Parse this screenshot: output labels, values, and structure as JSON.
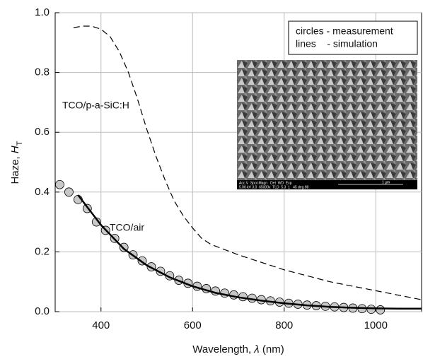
{
  "chart_data": {
    "type": "scatter-line",
    "x_label": {
      "text": "Wavelength, ",
      "var": "λ",
      "unit": " (nm)"
    },
    "y_label": {
      "text": "Haze, ",
      "var": "H",
      "sub": "T"
    },
    "xlim": [
      300,
      1100
    ],
    "xticks": [
      400,
      600,
      800,
      1000
    ],
    "ylim": [
      0,
      1
    ],
    "yticks": [
      {
        "value": 0,
        "label": "0.0"
      },
      {
        "value": 0.2,
        "label": "0.2"
      },
      {
        "value": 0.4,
        "label": "0.4"
      },
      {
        "value": 0.6,
        "label": "0.6"
      },
      {
        "value": 0.8,
        "label": "0.8"
      },
      {
        "value": 1,
        "label": "1.0"
      }
    ],
    "grid": true,
    "legend_lines": [
      "circles - measurement",
      "lines    - simulation"
    ],
    "annotations": [
      "TCO/p-a-SiC:H",
      "TCO/air"
    ],
    "inset_text": [
      "Acc.V  Spot Magn   Det  WD  Exp",
      "5.00 kV 3.0  65000x  TLD  5.3  1   45 deg.98",
      "1 µm"
    ],
    "measurement": {
      "color": "#c8c8c8",
      "x": [
        310,
        330,
        350,
        370,
        390,
        410,
        430,
        450,
        470,
        490,
        510,
        530,
        550,
        570,
        590,
        610,
        630,
        650,
        670,
        690,
        710,
        730,
        750,
        770,
        790,
        810,
        830,
        850,
        870,
        890,
        910,
        930,
        950,
        970,
        990,
        1010
      ],
      "values": [
        0.425,
        0.4,
        0.375,
        0.345,
        0.3,
        0.272,
        0.245,
        0.215,
        0.19,
        0.17,
        0.15,
        0.135,
        0.12,
        0.105,
        0.095,
        0.085,
        0.077,
        0.069,
        0.062,
        0.056,
        0.05,
        0.045,
        0.04,
        0.036,
        0.032,
        0.028,
        0.025,
        0.022,
        0.02,
        0.018,
        0.016,
        0.014,
        0.012,
        0.01,
        0.008,
        0.006
      ]
    },
    "sim_air": {
      "color": "#000000",
      "x": [
        350,
        370,
        400,
        450,
        500,
        550,
        600,
        650,
        700,
        750,
        800,
        850,
        900,
        950,
        1000,
        1050,
        1100
      ],
      "values": [
        0.39,
        0.35,
        0.29,
        0.21,
        0.155,
        0.115,
        0.085,
        0.063,
        0.048,
        0.037,
        0.028,
        0.021,
        0.016,
        0.013,
        0.011,
        0.01,
        0.01
      ]
    },
    "sim_sic": {
      "color": "#000000",
      "x": [
        340,
        360,
        380,
        400,
        420,
        440,
        460,
        480,
        500,
        520,
        540,
        560,
        580,
        600,
        620,
        640,
        700,
        800,
        900,
        1000,
        1100
      ],
      "values": [
        0.95,
        0.955,
        0.955,
        0.945,
        0.92,
        0.87,
        0.8,
        0.71,
        0.61,
        0.52,
        0.44,
        0.37,
        0.32,
        0.28,
        0.245,
        0.225,
        0.19,
        0.14,
        0.1,
        0.07,
        0.04
      ]
    }
  }
}
